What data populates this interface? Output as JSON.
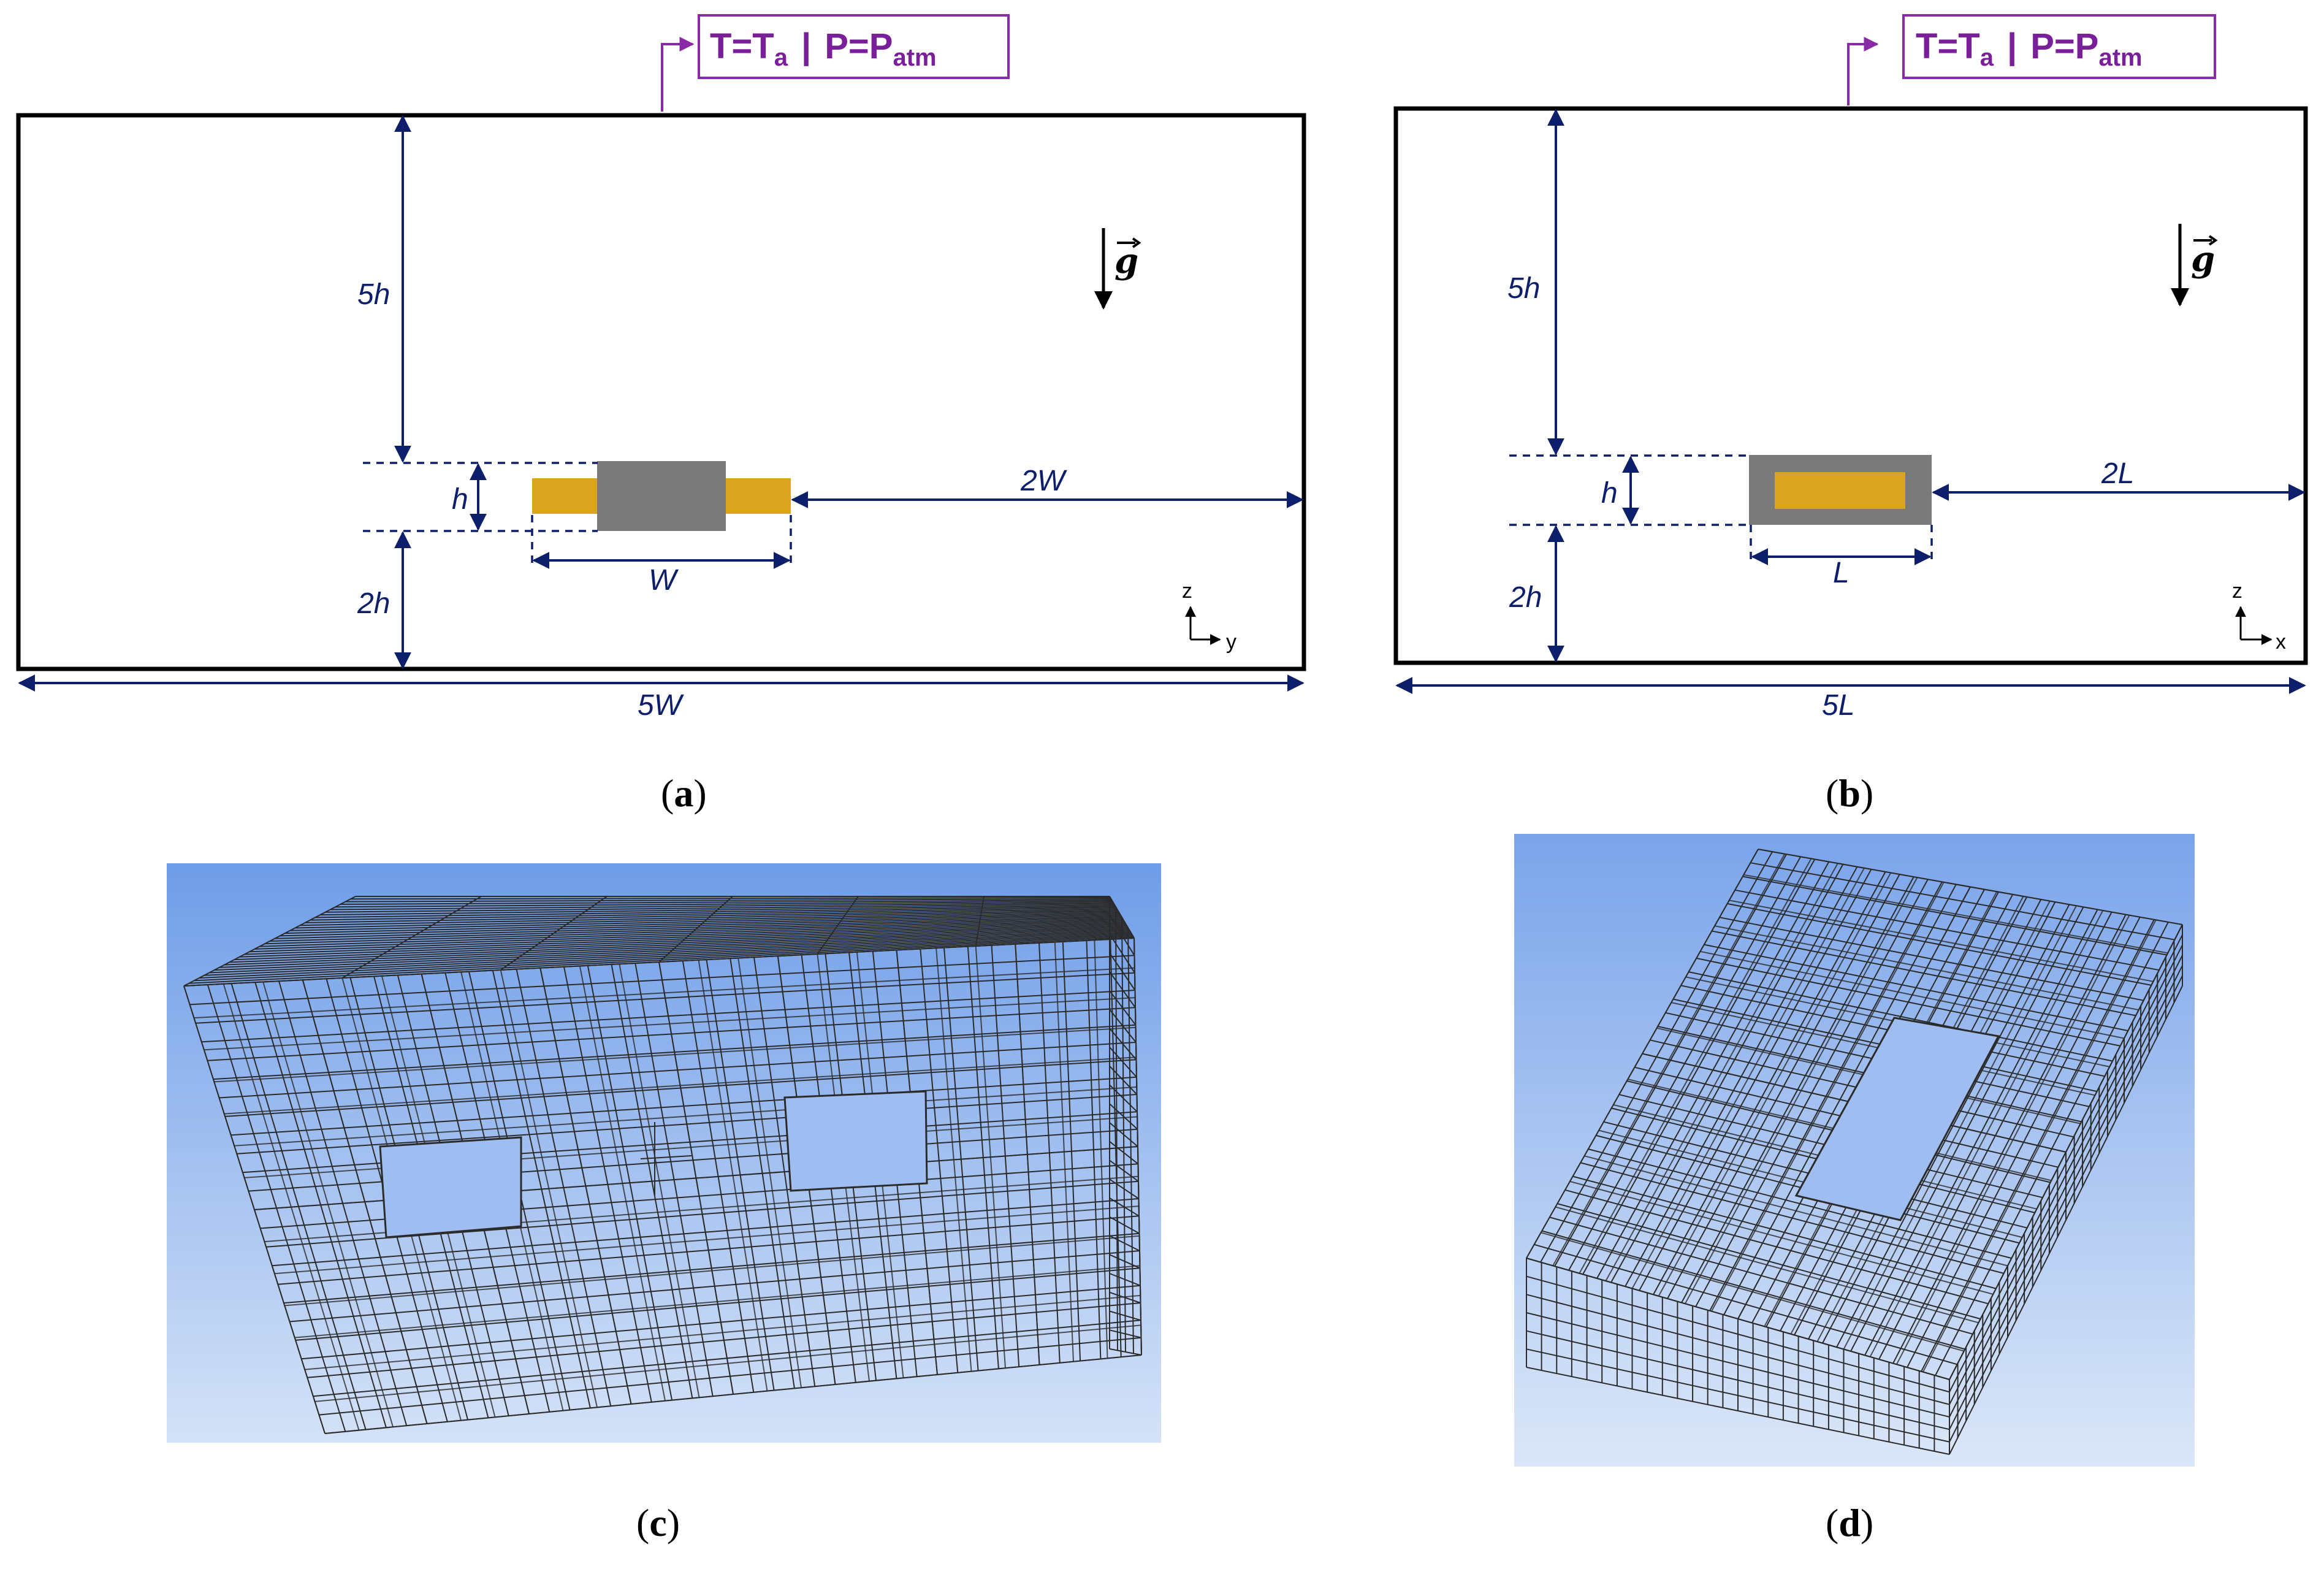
{
  "panel_a": {
    "bc_text_T": "T=T",
    "bc_sub_a": "a",
    "bc_sep": "|",
    "bc_text_P": "P=P",
    "bc_sub_atm": "atm",
    "dim_5h": "5h",
    "dim_h": "h",
    "dim_2h": "2h",
    "dim_W": "W",
    "dim_2W": "2W",
    "dim_5W": "5W",
    "gravity": "g",
    "axis_vertical": "z",
    "axis_horizontal": "y",
    "caption_open": "(",
    "caption_letter": "a",
    "caption_close": ")"
  },
  "panel_b": {
    "bc_text_T": "T=T",
    "bc_sub_a": "a",
    "bc_sep": "|",
    "bc_text_P": "P=P",
    "bc_sub_atm": "atm",
    "dim_5h": "5h",
    "dim_h": "h",
    "dim_2h": "2h",
    "dim_L": "L",
    "dim_2L": "2L",
    "dim_5L": "5L",
    "gravity": "g",
    "axis_vertical": "z",
    "axis_horizontal": "x",
    "caption_open": "(",
    "caption_letter": "b",
    "caption_close": ")"
  },
  "panel_c": {
    "caption_open": "(",
    "caption_letter": "c",
    "caption_close": ")"
  },
  "panel_d": {
    "caption_open": "(",
    "caption_letter": "d",
    "caption_close": ")"
  },
  "colors": {
    "dimension_line": "#0d1f6b",
    "boundary_condition": "#7a1f9a",
    "body_gray": "#7a7a7a",
    "conductor_gold": "#d9a520",
    "mesh_background_top": "#6f9de8",
    "mesh_background_bottom": "#d4e2f7"
  },
  "icons": [
    "gravity-arrow-icon",
    "axis-triad-icon"
  ]
}
